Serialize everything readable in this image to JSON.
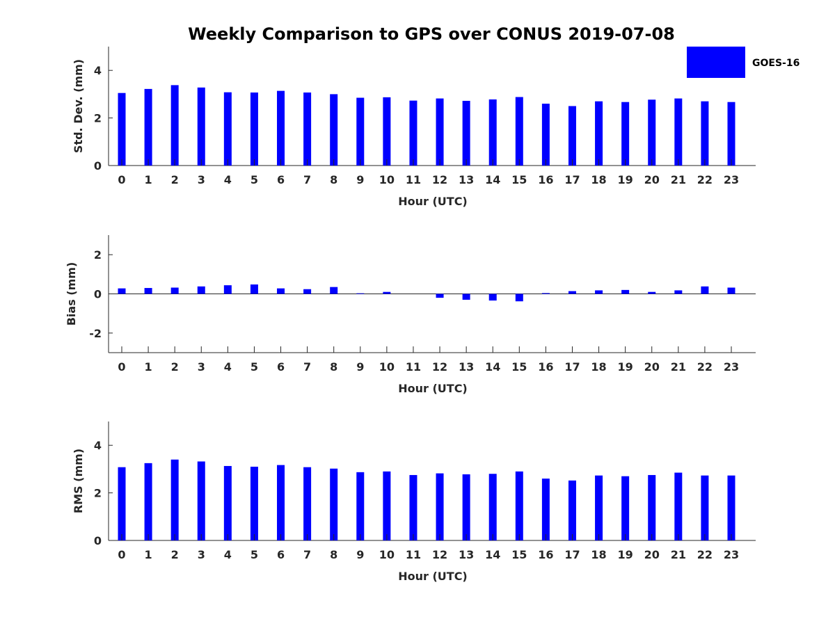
{
  "chart_data": {
    "type": "bar",
    "title": "Weekly Comparison to GPS over CONUS 2019-07-08",
    "legend": {
      "label": "GOES-16",
      "position": "top-right"
    },
    "colors": {
      "bar": "#0000ff",
      "axis": "#262626"
    },
    "panels": [
      {
        "ylabel": "Std. Dev. (mm)",
        "xlabel": "Hour (UTC)",
        "ylim": [
          0,
          5
        ],
        "yticks": [
          0,
          2,
          4
        ],
        "x": [
          0,
          1,
          2,
          3,
          4,
          5,
          6,
          7,
          8,
          9,
          10,
          11,
          12,
          13,
          14,
          15,
          16,
          17,
          18,
          19,
          20,
          21,
          22,
          23
        ],
        "values": [
          3.05,
          3.22,
          3.38,
          3.28,
          3.08,
          3.07,
          3.14,
          3.07,
          3.0,
          2.85,
          2.87,
          2.73,
          2.82,
          2.72,
          2.78,
          2.88,
          2.6,
          2.5,
          2.7,
          2.67,
          2.77,
          2.82,
          2.7,
          2.67
        ]
      },
      {
        "ylabel": "Bias (mm)",
        "xlabel": "Hour (UTC)",
        "ylim": [
          -3,
          3
        ],
        "yticks": [
          -2,
          0,
          2
        ],
        "x": [
          0,
          1,
          2,
          3,
          4,
          5,
          6,
          7,
          8,
          9,
          10,
          11,
          12,
          13,
          14,
          15,
          16,
          17,
          18,
          19,
          20,
          21,
          22,
          23
        ],
        "values": [
          0.28,
          0.3,
          0.32,
          0.38,
          0.44,
          0.48,
          0.28,
          0.24,
          0.35,
          0.03,
          0.1,
          0.0,
          -0.2,
          -0.3,
          -0.34,
          -0.38,
          0.04,
          0.14,
          0.18,
          0.2,
          0.1,
          0.18,
          0.38,
          0.32
        ]
      },
      {
        "ylabel": "RMS (mm)",
        "xlabel": "Hour (UTC)",
        "ylim": [
          0,
          5
        ],
        "yticks": [
          0,
          2,
          4
        ],
        "x": [
          0,
          1,
          2,
          3,
          4,
          5,
          6,
          7,
          8,
          9,
          10,
          11,
          12,
          13,
          14,
          15,
          16,
          17,
          18,
          19,
          20,
          21,
          22,
          23
        ],
        "values": [
          3.08,
          3.25,
          3.4,
          3.32,
          3.13,
          3.1,
          3.17,
          3.08,
          3.02,
          2.87,
          2.9,
          2.75,
          2.82,
          2.78,
          2.8,
          2.9,
          2.6,
          2.52,
          2.73,
          2.7,
          2.75,
          2.85,
          2.73,
          2.73
        ]
      }
    ]
  }
}
